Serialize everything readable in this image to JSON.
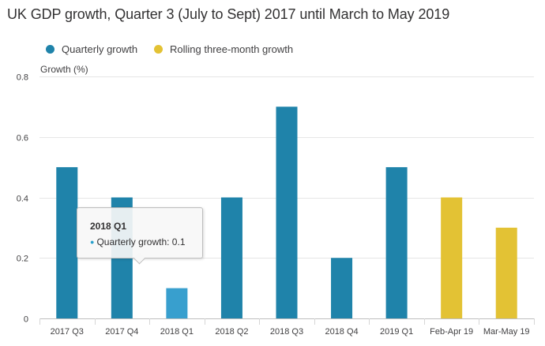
{
  "chart_data": {
    "type": "bar",
    "title": "UK GDP growth, Quarter 3 (July to Sept) 2017 until March to May 2019",
    "ylabel": "Growth (%)",
    "xlabel": "",
    "ylim": [
      0,
      0.8
    ],
    "yticks": [
      "0",
      "0.2",
      "0.4",
      "0.6",
      "0.8"
    ],
    "ytick_values": [
      0,
      0.2,
      0.4,
      0.6,
      0.8
    ],
    "grid": true,
    "legend_placement": "top-left",
    "categories": [
      "2017 Q3",
      "2017 Q4",
      "2018 Q1",
      "2018 Q2",
      "2018 Q3",
      "2018 Q4",
      "2019 Q1",
      "Feb-Apr 19",
      "Mar-May 19"
    ],
    "series": [
      {
        "name": "Quarterly growth",
        "color": "#206095",
        "values": [
          0.5,
          0.4,
          0.1,
          0.4,
          0.7,
          0.2,
          0.5,
          null,
          null
        ]
      },
      {
        "name": "Rolling three-month growth",
        "color": "#f0c330",
        "values": [
          null,
          null,
          null,
          null,
          null,
          null,
          null,
          0.4,
          0.3
        ]
      }
    ],
    "colors": {
      "quarterly": "#1f83aa",
      "quarterly_hover": "#389fce",
      "rolling": "#e3c234"
    },
    "highlighted_category": "2018 Q1"
  },
  "tooltip": {
    "title": "2018 Q1",
    "label": "Quarterly growth: 0.1"
  }
}
